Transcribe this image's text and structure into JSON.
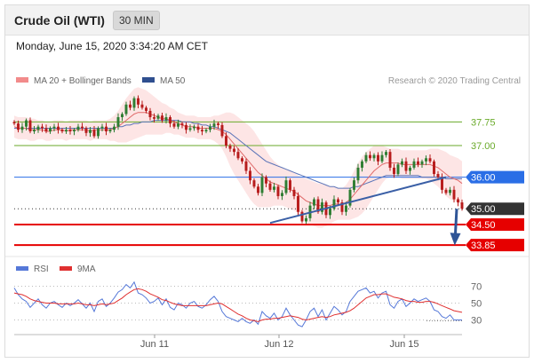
{
  "header": {
    "title": "Crude Oil (WTI)",
    "timeframe": "30 MIN"
  },
  "datetime": "Monday, June 15, 2020 3:34:20 AM CET",
  "legend": {
    "ma_bb_label": "MA 20 + Bollinger Bands",
    "ma50_label": "MA 50"
  },
  "copyright": "Research © 2020 Trading Central",
  "rsi_legend": {
    "rsi_label": "RSI",
    "ma9_label": "9MA"
  },
  "colors": {
    "ma20": "#e06a6a",
    "bollinger_fill": "#fde0e0",
    "ma50": "#5b74b8",
    "candle_up": "#2e7d32",
    "candle_down": "#b71c1c",
    "support": "#e60000",
    "pivot": "#2a6ee6",
    "resistance": "#6aaa2a",
    "last_price": "#333333",
    "rsi": "#5578d8",
    "rsi_ma": "#e03030"
  },
  "chart_data": [
    {
      "type": "candlestick",
      "title": "Crude Oil (WTI)",
      "timeframe": "30 MIN",
      "x_ticks": [
        "Jun 11",
        "Jun 12",
        "Jun 15"
      ],
      "ylim": [
        33.6,
        38.8
      ],
      "key_levels": [
        {
          "label": "37.75",
          "value": 37.75,
          "kind": "resistance"
        },
        {
          "label": "37.00",
          "value": 37.0,
          "kind": "resistance"
        },
        {
          "label": "36.00",
          "value": 36.0,
          "kind": "pivot"
        },
        {
          "label": "35.00",
          "value": 35.0,
          "kind": "last"
        },
        {
          "label": "34.50",
          "value": 34.5,
          "kind": "support"
        },
        {
          "label": "33.85",
          "value": 33.85,
          "kind": "support"
        }
      ],
      "close_series": [
        37.7,
        37.5,
        37.6,
        37.8,
        37.45,
        37.5,
        37.6,
        37.55,
        37.45,
        37.55,
        37.6,
        37.5,
        37.45,
        37.5,
        37.45,
        37.5,
        37.6,
        37.55,
        37.4,
        37.5,
        37.3,
        37.55,
        37.6,
        37.45,
        37.5,
        37.6,
        37.9,
        38.0,
        38.3,
        38.2,
        38.5,
        38.3,
        38.2,
        38.1,
        37.9,
        37.85,
        37.95,
        37.8,
        37.9,
        37.7,
        37.6,
        37.7,
        37.65,
        37.5,
        37.55,
        37.6,
        37.5,
        37.45,
        37.5,
        37.6,
        37.7,
        37.65,
        37.3,
        37.0,
        36.9,
        36.8,
        36.6,
        36.5,
        36.2,
        35.9,
        35.7,
        35.5,
        36.0,
        35.8,
        35.6,
        35.7,
        35.4,
        35.5,
        35.9,
        35.6,
        35.4,
        34.9,
        34.6,
        34.7,
        35.1,
        35.3,
        34.9,
        35.2,
        34.8,
        35.0,
        35.3,
        35.2,
        34.9,
        35.1,
        35.6,
        35.9,
        36.3,
        36.5,
        36.7,
        36.6,
        36.7,
        36.5,
        36.7,
        36.8,
        36.3,
        36.1,
        36.4,
        36.5,
        36.2,
        36.3,
        36.5,
        36.4,
        36.5,
        36.6,
        36.5,
        36.1,
        36.0,
        35.6,
        35.5,
        35.6,
        35.3,
        35.2,
        35.0
      ],
      "ma20_series": [
        37.6,
        37.55,
        37.55,
        37.55,
        37.5,
        37.5,
        37.5,
        37.5,
        37.45,
        37.45,
        37.5,
        37.5,
        37.5,
        37.45,
        37.5,
        37.5,
        37.5,
        37.5,
        37.5,
        37.45,
        37.5,
        37.5,
        37.5,
        37.5,
        37.5,
        37.55,
        37.6,
        37.7,
        37.8,
        37.9,
        38.0,
        38.05,
        38.05,
        38.05,
        38.0,
        37.95,
        37.9,
        37.85,
        37.85,
        37.8,
        37.75,
        37.7,
        37.65,
        37.6,
        37.6,
        37.6,
        37.55,
        37.55,
        37.55,
        37.55,
        37.55,
        37.5,
        37.45,
        37.35,
        37.2,
        37.05,
        36.9,
        36.75,
        36.6,
        36.45,
        36.3,
        36.15,
        36.05,
        35.95,
        35.85,
        35.8,
        35.75,
        35.7,
        35.65,
        35.6,
        35.55,
        35.45,
        35.35,
        35.25,
        35.2,
        35.15,
        35.1,
        35.1,
        35.1,
        35.1,
        35.15,
        35.15,
        35.15,
        35.2,
        35.3,
        35.45,
        35.6,
        35.75,
        35.9,
        36.05,
        36.2,
        36.3,
        36.4,
        36.45,
        36.45,
        36.45,
        36.45,
        36.4,
        36.4,
        36.4,
        36.4,
        36.4,
        36.4,
        36.4,
        36.4,
        36.35,
        36.3,
        36.2,
        36.1,
        36.0,
        35.95,
        35.9,
        35.8
      ],
      "ma50_series": [
        37.55,
        37.55,
        37.55,
        37.55,
        37.55,
        37.55,
        37.55,
        37.55,
        37.55,
        37.55,
        37.55,
        37.55,
        37.55,
        37.55,
        37.55,
        37.55,
        37.55,
        37.55,
        37.55,
        37.55,
        37.55,
        37.55,
        37.55,
        37.55,
        37.55,
        37.55,
        37.6,
        37.6,
        37.65,
        37.65,
        37.7,
        37.7,
        37.75,
        37.75,
        37.75,
        37.8,
        37.8,
        37.8,
        37.8,
        37.8,
        37.8,
        37.8,
        37.75,
        37.75,
        37.75,
        37.7,
        37.7,
        37.65,
        37.65,
        37.6,
        37.6,
        37.55,
        37.5,
        37.45,
        37.4,
        37.3,
        37.2,
        37.1,
        37.0,
        36.9,
        36.8,
        36.7,
        36.6,
        36.5,
        36.45,
        36.4,
        36.35,
        36.3,
        36.25,
        36.2,
        36.15,
        36.1,
        36.05,
        36.0,
        35.95,
        35.9,
        35.85,
        35.8,
        35.75,
        35.7,
        35.7,
        35.65,
        35.65,
        35.65,
        35.65,
        35.7,
        35.7,
        35.75,
        35.8,
        35.85,
        35.9,
        35.95,
        36.0,
        36.05,
        36.05,
        36.05,
        36.05,
        36.05,
        36.05,
        36.05,
        36.05,
        36.05,
        36.0,
        36.0,
        36.0,
        36.0,
        36.0,
        36.0,
        35.95,
        35.95,
        35.95,
        35.95,
        35.95
      ],
      "bb_width": [
        0.35,
        0.35,
        0.35,
        0.35,
        0.35,
        0.35,
        0.3,
        0.3,
        0.3,
        0.3,
        0.3,
        0.3,
        0.3,
        0.3,
        0.3,
        0.3,
        0.3,
        0.3,
        0.3,
        0.3,
        0.3,
        0.3,
        0.3,
        0.3,
        0.35,
        0.4,
        0.5,
        0.6,
        0.7,
        0.75,
        0.8,
        0.8,
        0.75,
        0.7,
        0.65,
        0.6,
        0.55,
        0.5,
        0.45,
        0.4,
        0.4,
        0.35,
        0.35,
        0.35,
        0.35,
        0.35,
        0.35,
        0.35,
        0.35,
        0.35,
        0.4,
        0.45,
        0.55,
        0.7,
        0.85,
        0.95,
        1.0,
        1.05,
        1.1,
        1.15,
        1.15,
        1.1,
        1.0,
        0.9,
        0.8,
        0.7,
        0.65,
        0.6,
        0.6,
        0.6,
        0.6,
        0.6,
        0.65,
        0.7,
        0.7,
        0.7,
        0.7,
        0.7,
        0.65,
        0.6,
        0.55,
        0.5,
        0.5,
        0.55,
        0.65,
        0.75,
        0.85,
        0.9,
        0.9,
        0.85,
        0.8,
        0.7,
        0.6,
        0.5,
        0.45,
        0.45,
        0.45,
        0.45,
        0.45,
        0.45,
        0.45,
        0.45,
        0.45,
        0.45,
        0.5,
        0.55,
        0.6,
        0.65,
        0.7,
        0.7,
        0.7,
        0.7,
        0.7
      ]
    },
    {
      "type": "line",
      "title": "",
      "ylim": [
        20,
        80
      ],
      "y_ticks": [
        70,
        50,
        30
      ],
      "series": [
        {
          "name": "RSI",
          "values": [
            68,
            60,
            55,
            52,
            45,
            50,
            55,
            48,
            44,
            50,
            52,
            48,
            45,
            50,
            47,
            50,
            54,
            49,
            44,
            50,
            40,
            52,
            55,
            46,
            50,
            56,
            63,
            66,
            72,
            68,
            75,
            62,
            60,
            56,
            50,
            52,
            56,
            48,
            55,
            45,
            42,
            50,
            48,
            44,
            50,
            52,
            46,
            44,
            48,
            54,
            58,
            52,
            40,
            34,
            32,
            30,
            28,
            32,
            28,
            26,
            30,
            25,
            40,
            35,
            32,
            38,
            30,
            34,
            44,
            36,
            30,
            24,
            22,
            30,
            40,
            44,
            34,
            42,
            30,
            38,
            46,
            42,
            36,
            40,
            52,
            58,
            64,
            66,
            68,
            62,
            64,
            56,
            62,
            64,
            48,
            44,
            52,
            55,
            46,
            50,
            55,
            52,
            54,
            56,
            52,
            42,
            40,
            34,
            32,
            36,
            30,
            30,
            30
          ]
        },
        {
          "name": "9MA",
          "values": [
            62,
            61,
            60,
            58,
            55,
            53,
            52,
            51,
            50,
            50,
            50,
            49,
            49,
            49,
            49,
            49,
            50,
            49,
            48,
            48,
            47,
            48,
            49,
            48,
            49,
            50,
            53,
            56,
            60,
            63,
            66,
            67,
            66,
            64,
            61,
            59,
            57,
            54,
            53,
            51,
            49,
            48,
            47,
            47,
            47,
            47,
            47,
            47,
            47,
            48,
            49,
            50,
            49,
            46,
            43,
            40,
            37,
            35,
            32,
            30,
            29,
            28,
            30,
            31,
            31,
            32,
            32,
            33,
            34,
            35,
            34,
            33,
            31,
            30,
            31,
            32,
            33,
            34,
            33,
            34,
            36,
            37,
            38,
            39,
            41,
            44,
            48,
            52,
            56,
            58,
            60,
            60,
            61,
            61,
            59,
            57,
            56,
            55,
            53,
            52,
            52,
            51,
            51,
            52,
            52,
            51,
            49,
            47,
            45,
            43,
            41,
            40,
            39
          ]
        }
      ]
    }
  ]
}
